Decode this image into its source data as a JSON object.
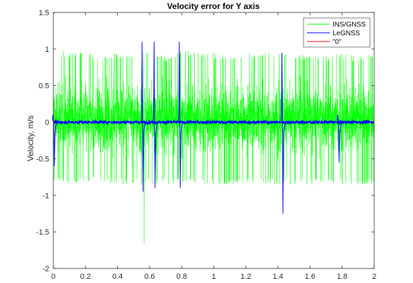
{
  "chart_data": {
    "type": "line",
    "title": "Velocity error for Y axis",
    "xlabel": "",
    "ylabel": "Velocity, m/s",
    "xlim": [
      0,
      2
    ],
    "ylim": [
      -2,
      1.5
    ],
    "xticks": [
      "0",
      "0.2",
      "0.4",
      "0.6",
      "0.8",
      "1",
      "1.2",
      "1.4",
      "1.6",
      "1.8",
      "2"
    ],
    "yticks": [
      "-2",
      "-1.5",
      "-1",
      "-0.5",
      "0",
      "0.5",
      "1",
      "1.5"
    ],
    "grid": false,
    "legend_position": "top-right",
    "series": [
      {
        "name": "INS/GNSS",
        "color": "#00ff00",
        "description_values": {
          "typical_band": [
            -0.75,
            0.85
          ],
          "extreme_min": -1.65,
          "extreme_min_x": 0.565
        },
        "envelope_x": [
          0.0,
          0.1,
          0.2,
          0.3,
          0.4,
          0.5,
          0.565,
          0.6,
          0.7,
          0.8,
          0.9,
          1.0,
          1.1,
          1.2,
          1.3,
          1.4,
          1.5,
          1.6,
          1.7,
          1.8,
          1.9,
          2.0
        ],
        "envelope_max": [
          1.0,
          0.95,
          0.95,
          0.9,
          0.95,
          0.9,
          0.95,
          0.95,
          0.9,
          1.0,
          0.95,
          0.95,
          0.9,
          0.95,
          0.95,
          0.95,
          0.9,
          0.95,
          0.9,
          0.95,
          0.9,
          0.95
        ],
        "envelope_min": [
          -0.8,
          -0.85,
          -0.85,
          -0.8,
          -0.85,
          -0.85,
          -1.65,
          -0.95,
          -0.85,
          -0.9,
          -0.85,
          -0.85,
          -0.85,
          -0.85,
          -0.85,
          -0.95,
          -0.85,
          -0.85,
          -0.85,
          -0.85,
          -0.85,
          -0.85
        ]
      },
      {
        "name": "LeGNSS",
        "color": "#0000ff",
        "baseline_noise": 0.03,
        "spikes": [
          {
            "x": 0.0,
            "max": 0.05,
            "min": -0.6
          },
          {
            "x": 0.553,
            "max": 1.1,
            "min": -0.95
          },
          {
            "x": 0.628,
            "max": 1.1,
            "min": -0.9
          },
          {
            "x": 0.785,
            "max": 1.1,
            "min": -0.9
          },
          {
            "x": 1.425,
            "max": 0.95,
            "min": -1.25
          },
          {
            "x": 1.775,
            "max": 0.05,
            "min": -0.55
          }
        ]
      },
      {
        "name": "\"0\"",
        "color": "#ff0000",
        "x": [
          0,
          2
        ],
        "y": [
          0,
          0
        ]
      }
    ]
  }
}
